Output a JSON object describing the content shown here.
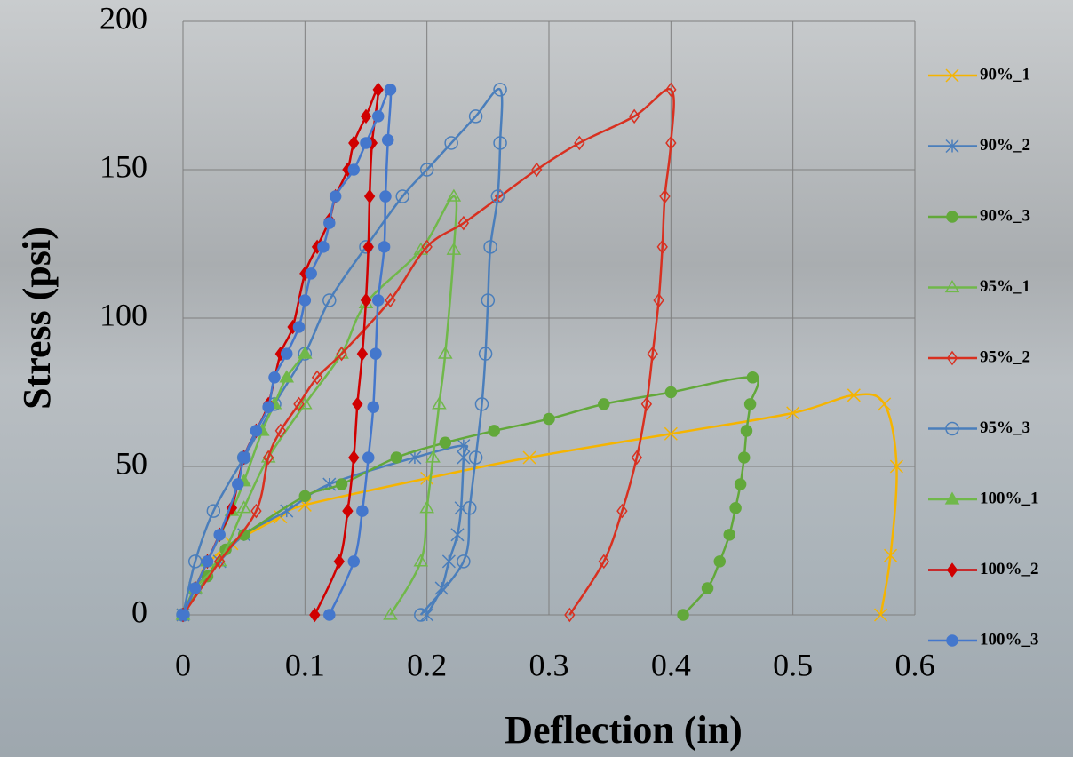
{
  "chart_data": {
    "type": "line",
    "smooth": true,
    "grid": true,
    "legend": "right",
    "x_label": "Deflection (in)",
    "y_label": "Stress (psi)",
    "xlim": [
      0,
      0.6
    ],
    "xticks": [
      0,
      0.1,
      0.2,
      0.3,
      0.4,
      0.5,
      0.6
    ],
    "ylim": [
      0,
      200
    ],
    "yticks": [
      0,
      50,
      100,
      150,
      200
    ],
    "series": [
      {
        "name": "90%_1",
        "color": "#f5b400",
        "marker": "x",
        "x": [
          0,
          0.01,
          0.02,
          0.04,
          0.08,
          0.1,
          0.2,
          0.284,
          0.4,
          0.5,
          0.55,
          0.575,
          0.585,
          0.58,
          0.572
        ],
        "values": [
          0,
          9,
          17,
          24,
          33,
          37,
          46,
          53,
          61,
          68,
          74,
          71,
          50,
          20,
          0
        ]
      },
      {
        "name": "90%_2",
        "color": "#4a7ebb",
        "marker": "star",
        "x": [
          0,
          0.01,
          0.03,
          0.05,
          0.085,
          0.12,
          0.19,
          0.23,
          0.23,
          0.228,
          0.225,
          0.218,
          0.212,
          0.2
        ],
        "values": [
          0,
          9,
          18,
          27,
          35,
          44,
          53,
          57,
          53,
          36,
          27,
          18,
          9,
          0
        ]
      },
      {
        "name": "90%_3",
        "color": "#62a83a",
        "marker": "circle-filled",
        "x": [
          0,
          0.02,
          0.035,
          0.05,
          0.1,
          0.13,
          0.175,
          0.215,
          0.255,
          0.3,
          0.345,
          0.4,
          0.467,
          0.465,
          0.462,
          0.46,
          0.457,
          0.453,
          0.448,
          0.44,
          0.43,
          0.41
        ],
        "values": [
          0,
          13,
          22,
          27,
          40,
          44,
          53,
          58,
          62,
          66,
          71,
          75,
          80,
          71,
          62,
          53,
          44,
          36,
          27,
          18,
          9,
          0
        ]
      },
      {
        "name": "95%_1",
        "color": "#70b84a",
        "marker": "triangle-open",
        "x": [
          0,
          0.01,
          0.03,
          0.05,
          0.07,
          0.1,
          0.13,
          0.15,
          0.195,
          0.222,
          0.222,
          0.215,
          0.21,
          0.205,
          0.2,
          0.195,
          0.17
        ],
        "values": [
          0,
          9,
          18,
          36,
          53,
          71,
          88,
          105,
          123,
          141,
          123,
          88,
          71,
          53,
          36,
          18,
          0
        ]
      },
      {
        "name": "95%_2",
        "color": "#d83020",
        "marker": "diamond-open",
        "x": [
          0,
          0.03,
          0.06,
          0.07,
          0.08,
          0.095,
          0.11,
          0.13,
          0.17,
          0.2,
          0.23,
          0.26,
          0.29,
          0.325,
          0.37,
          0.4,
          0.4,
          0.395,
          0.393,
          0.39,
          0.385,
          0.38,
          0.372,
          0.36,
          0.345,
          0.317
        ],
        "values": [
          0,
          18,
          35,
          53,
          62,
          71,
          80,
          88,
          106,
          124,
          132,
          141,
          150,
          159,
          168,
          177,
          159,
          141,
          124,
          106,
          88,
          71,
          53,
          35,
          18,
          0
        ]
      },
      {
        "name": "95%_3",
        "color": "#4a7ebb",
        "marker": "circle-open",
        "x": [
          0,
          0.01,
          0.025,
          0.05,
          0.075,
          0.1,
          0.12,
          0.15,
          0.18,
          0.2,
          0.22,
          0.24,
          0.26,
          0.26,
          0.258,
          0.252,
          0.25,
          0.248,
          0.245,
          0.24,
          0.235,
          0.23,
          0.195
        ],
        "values": [
          0,
          18,
          35,
          53,
          71,
          88,
          106,
          124,
          141,
          150,
          159,
          168,
          177,
          159,
          141,
          124,
          106,
          88,
          71,
          53,
          36,
          18,
          0
        ]
      },
      {
        "name": "100%_1",
        "color": "#70b84a",
        "marker": "triangle-filled",
        "x": [
          0,
          0.02,
          0.04,
          0.05,
          0.065,
          0.075,
          0.085,
          0.1
        ],
        "values": [
          0,
          18,
          35,
          45,
          62,
          71,
          80,
          88
        ]
      },
      {
        "name": "100%_2",
        "color": "#d00000",
        "marker": "diamond-filled",
        "x": [
          0,
          0.01,
          0.02,
          0.03,
          0.04,
          0.05,
          0.06,
          0.07,
          0.08,
          0.09,
          0.1,
          0.11,
          0.12,
          0.125,
          0.135,
          0.14,
          0.15,
          0.16,
          0.155,
          0.153,
          0.152,
          0.15,
          0.147,
          0.143,
          0.14,
          0.135,
          0.128,
          0.108
        ],
        "values": [
          0,
          9,
          18,
          27,
          36,
          53,
          62,
          71,
          88,
          97,
          115,
          124,
          133,
          141,
          150,
          159,
          168,
          177,
          159,
          141,
          124,
          106,
          88,
          71,
          53,
          35,
          18,
          0
        ]
      },
      {
        "name": "100%_3",
        "color": "#4477cc",
        "marker": "circle-filled",
        "x": [
          0,
          0.01,
          0.02,
          0.03,
          0.045,
          0.05,
          0.06,
          0.07,
          0.075,
          0.085,
          0.095,
          0.1,
          0.105,
          0.115,
          0.12,
          0.125,
          0.14,
          0.15,
          0.16,
          0.17,
          0.168,
          0.166,
          0.165,
          0.16,
          0.158,
          0.156,
          0.152,
          0.147,
          0.14,
          0.12
        ],
        "values": [
          0,
          9,
          18,
          27,
          44,
          53,
          62,
          70,
          80,
          88,
          97,
          106,
          115,
          124,
          132,
          141,
          150,
          159,
          168,
          177,
          160,
          141,
          124,
          106,
          88,
          70,
          53,
          35,
          18,
          0
        ]
      }
    ]
  }
}
